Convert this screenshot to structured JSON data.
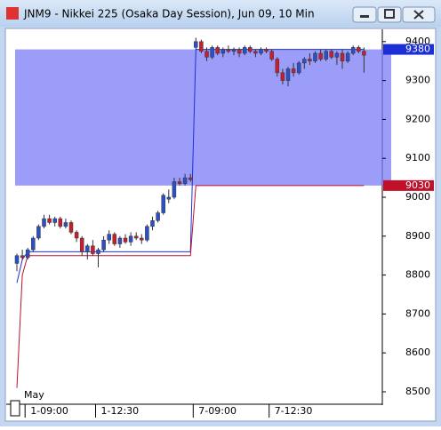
{
  "chart_data": {
    "type": "candlestick",
    "title": "JNM9 - Nikkei 225 (Osaka Day Session), Jun 09, 10 Min",
    "annotation": "May",
    "categories": [
      null,
      null,
      "1-09:00",
      null,
      null,
      null,
      null,
      null,
      null,
      null,
      null,
      null,
      null,
      null,
      null,
      "1-12:30",
      null,
      null,
      null,
      null,
      null,
      null,
      null,
      null,
      null,
      null,
      null,
      null,
      null,
      null,
      null,
      null,
      null,
      "7-09:00",
      null,
      null,
      null,
      null,
      null,
      null,
      null,
      null,
      null,
      null,
      null,
      null,
      null,
      "7-12:30",
      null,
      null,
      null,
      null,
      null,
      null,
      null,
      null,
      null,
      null,
      null,
      null,
      null,
      null,
      null,
      null,
      null
    ],
    "open": [
      8830,
      8850,
      8845,
      8865,
      8895,
      8925,
      8945,
      8935,
      8945,
      8925,
      8935,
      8910,
      8895,
      8860,
      8875,
      8855,
      8865,
      8890,
      8905,
      8880,
      8895,
      8885,
      8900,
      8895,
      8890,
      8925,
      8940,
      8960,
      8995,
      9000,
      9040,
      9035,
      9050,
      9385,
      9400,
      9375,
      9360,
      9385,
      9370,
      9380,
      9375,
      9380,
      9370,
      9385,
      9375,
      9370,
      9380,
      9375,
      9355,
      9320,
      9300,
      9330,
      9320,
      9345,
      9355,
      9350,
      9370,
      9355,
      9375,
      9360,
      9370,
      9350,
      9370,
      9385,
      9375
    ],
    "high": [
      8855,
      8865,
      8870,
      8900,
      8930,
      8955,
      8955,
      8950,
      8950,
      8945,
      8940,
      8915,
      8900,
      8880,
      8890,
      8870,
      8900,
      8915,
      8910,
      8900,
      8905,
      8910,
      8910,
      8905,
      8930,
      8950,
      8965,
      9010,
      9020,
      9050,
      9050,
      9060,
      9060,
      9410,
      9405,
      9385,
      9390,
      9390,
      9385,
      9390,
      9385,
      9385,
      9390,
      9390,
      9380,
      9385,
      9385,
      9380,
      9360,
      9330,
      9335,
      9345,
      9350,
      9360,
      9370,
      9375,
      9380,
      9380,
      9380,
      9375,
      9380,
      9375,
      9390,
      9390,
      9385
    ],
    "low": [
      8810,
      8840,
      8840,
      8860,
      8890,
      8920,
      8930,
      8925,
      8920,
      8920,
      8905,
      8885,
      8850,
      8840,
      8850,
      8820,
      8860,
      8880,
      8875,
      8870,
      8880,
      8875,
      8890,
      8880,
      8885,
      8915,
      8935,
      8955,
      8985,
      8995,
      9030,
      9030,
      9040,
      9380,
      9370,
      9350,
      9355,
      9365,
      9360,
      9370,
      9365,
      9360,
      9365,
      9370,
      9360,
      9365,
      9370,
      9350,
      9310,
      9290,
      9285,
      9310,
      9315,
      9330,
      9340,
      9345,
      9350,
      9350,
      9355,
      9340,
      9330,
      9345,
      9365,
      9370,
      9320
    ],
    "close": [
      8850,
      8845,
      8865,
      8895,
      8925,
      8945,
      8935,
      8945,
      8925,
      8935,
      8910,
      8895,
      8860,
      8875,
      8855,
      8865,
      8890,
      8905,
      8880,
      8895,
      8885,
      8900,
      8895,
      8890,
      8925,
      8940,
      8960,
      9005,
      9000,
      9040,
      9035,
      9050,
      9045,
      9400,
      9375,
      9360,
      9385,
      9370,
      9380,
      9375,
      9380,
      9370,
      9385,
      9375,
      9370,
      9380,
      9375,
      9355,
      9320,
      9300,
      9330,
      9320,
      9345,
      9355,
      9350,
      9370,
      9355,
      9375,
      9360,
      9370,
      9350,
      9370,
      9385,
      9375,
      9365
    ],
    "up_color": "#2b50c8",
    "down_color": "#c81e32",
    "series": [
      {
        "color": "#1c2fd6",
        "values": [
          8780,
          8840,
          8860,
          8860,
          8860,
          8860,
          8860,
          8860,
          8860,
          8860,
          8860,
          8860,
          8860,
          8860,
          8860,
          8860,
          8860,
          8860,
          8860,
          8860,
          8860,
          8860,
          8860,
          8860,
          8860,
          8860,
          8860,
          8860,
          8860,
          8860,
          8860,
          8860,
          8860,
          9380,
          9380,
          9380,
          9380,
          9380,
          9380,
          9380,
          9380,
          9380,
          9380,
          9380,
          9380,
          9380,
          9380,
          9380,
          9380,
          9380,
          9380,
          9380,
          9380,
          9380,
          9380,
          9380,
          9380,
          9380,
          9380,
          9380,
          9380,
          9380,
          9380,
          9380,
          9380
        ]
      },
      {
        "color": "#c0102a",
        "values": [
          8510,
          8800,
          8850,
          8850,
          8850,
          8850,
          8850,
          8850,
          8850,
          8850,
          8850,
          8850,
          8850,
          8850,
          8850,
          8850,
          8850,
          8850,
          8850,
          8850,
          8850,
          8850,
          8850,
          8850,
          8850,
          8850,
          8850,
          8850,
          8850,
          8850,
          8850,
          8850,
          8850,
          9030,
          9030,
          9030,
          9030,
          9030,
          9030,
          9030,
          9030,
          9030,
          9030,
          9030,
          9030,
          9030,
          9030,
          9030,
          9030,
          9030,
          9030,
          9030,
          9030,
          9030,
          9030,
          9030,
          9030,
          9030,
          9030,
          9030,
          9030,
          9030,
          9030,
          9030,
          9030
        ]
      }
    ],
    "band_color": "#7b7cf6",
    "ylim": [
      8468,
      9427
    ],
    "yticks": [
      8500,
      8600,
      8700,
      8800,
      8900,
      9000,
      9100,
      9200,
      9300,
      9400
    ]
  }
}
